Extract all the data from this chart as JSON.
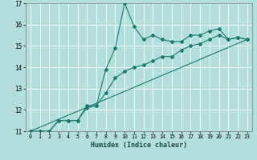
{
  "title": "",
  "xlabel": "Humidex (Indice chaleur)",
  "bg_color": "#b2dfdb",
  "grid_color": "#ffffff",
  "line_color": "#1a7a6e",
  "xlim": [
    -0.5,
    23.5
  ],
  "ylim": [
    11,
    17
  ],
  "yticks": [
    11,
    12,
    13,
    14,
    15,
    16,
    17
  ],
  "xticks": [
    0,
    1,
    2,
    3,
    4,
    5,
    6,
    7,
    8,
    9,
    10,
    11,
    12,
    13,
    14,
    15,
    16,
    17,
    18,
    19,
    20,
    21,
    22,
    23
  ],
  "series1_x": [
    0,
    1,
    2,
    3,
    4,
    5,
    6,
    7,
    8,
    9,
    10,
    11,
    12,
    13,
    14,
    15,
    16,
    17,
    18,
    19,
    20,
    21,
    22,
    23
  ],
  "series1_y": [
    11.0,
    11.0,
    11.0,
    11.5,
    11.5,
    11.5,
    12.2,
    12.2,
    13.9,
    14.9,
    17.0,
    15.9,
    15.3,
    15.5,
    15.3,
    15.2,
    15.2,
    15.5,
    15.5,
    15.7,
    15.8,
    15.3,
    15.4,
    15.3
  ],
  "series2_x": [
    0,
    1,
    2,
    3,
    4,
    5,
    6,
    7,
    8,
    9,
    10,
    11,
    12,
    13,
    14,
    15,
    16,
    17,
    18,
    19,
    20,
    21,
    22,
    23
  ],
  "series2_y": [
    11.0,
    11.0,
    11.0,
    11.5,
    11.5,
    11.5,
    12.1,
    12.2,
    12.8,
    13.5,
    13.8,
    14.0,
    14.1,
    14.3,
    14.5,
    14.5,
    14.8,
    15.0,
    15.1,
    15.3,
    15.5,
    15.3,
    15.4,
    15.3
  ],
  "series3_x": [
    0,
    23
  ],
  "series3_y": [
    11.0,
    15.3
  ]
}
